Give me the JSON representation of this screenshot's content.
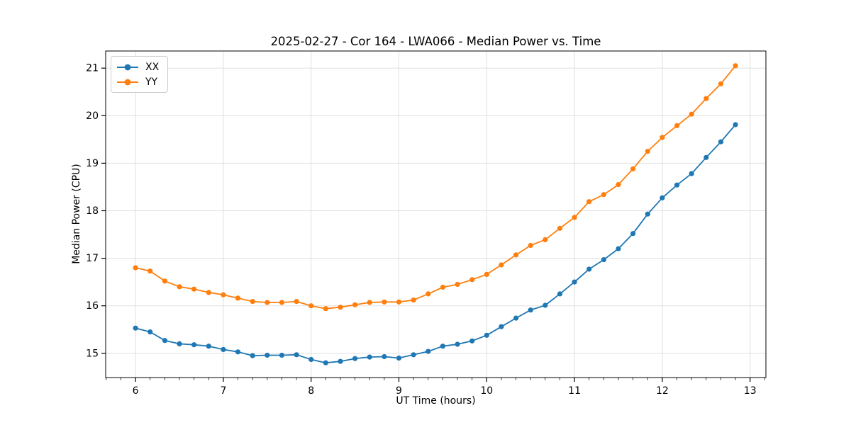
{
  "chart_data": {
    "type": "line",
    "title": "2025-02-27 - Cor 164 - LWA066 - Median Power vs. Time",
    "xlabel": "UT Time (hours)",
    "ylabel": "Median Power (CPU)",
    "xlim": [
      5.66,
      13.18
    ],
    "ylim": [
      14.49,
      21.36
    ],
    "x_ticks": [
      6,
      7,
      8,
      9,
      10,
      11,
      12,
      13
    ],
    "y_ticks": [
      15,
      16,
      17,
      18,
      19,
      20,
      21
    ],
    "x_minor_tick_interval": 0.1666667,
    "grid": true,
    "grid_color": "#e0e0e0",
    "axis_color": "#000000",
    "background": "#ffffff",
    "legend_position": "upper left",
    "x": [
      6.0,
      6.1667,
      6.3333,
      6.5,
      6.6667,
      6.8333,
      7.0,
      7.1667,
      7.3333,
      7.5,
      7.6667,
      7.8333,
      8.0,
      8.1667,
      8.3333,
      8.5,
      8.6667,
      8.8333,
      9.0,
      9.1667,
      9.3333,
      9.5,
      9.6667,
      9.8333,
      10.0,
      10.1667,
      10.3333,
      10.5,
      10.6667,
      10.8333,
      11.0,
      11.1667,
      11.3333,
      11.5,
      11.6667,
      11.8333,
      12.0,
      12.1667,
      12.3333,
      12.5,
      12.6667,
      12.8333
    ],
    "series": [
      {
        "name": "XX",
        "color": "#1f77b4",
        "marker": "circle",
        "values": [
          15.53,
          15.45,
          15.27,
          15.2,
          15.18,
          15.15,
          15.08,
          15.03,
          14.95,
          14.96,
          14.96,
          14.97,
          14.87,
          14.8,
          14.83,
          14.89,
          14.92,
          14.93,
          14.9,
          14.97,
          15.04,
          15.15,
          15.19,
          15.26,
          15.38,
          15.56,
          15.74,
          15.91,
          16.01,
          16.25,
          16.5,
          16.77,
          16.97,
          17.2,
          17.52,
          17.93,
          18.27,
          18.54,
          18.78,
          19.12,
          19.45,
          19.81
        ]
      },
      {
        "name": "YY",
        "color": "#ff7f0e",
        "marker": "circle",
        "values": [
          16.8,
          16.73,
          16.52,
          16.4,
          16.35,
          16.28,
          16.23,
          16.16,
          16.09,
          16.07,
          16.07,
          16.09,
          16.0,
          15.94,
          15.97,
          16.02,
          16.07,
          16.08,
          16.08,
          16.12,
          16.25,
          16.39,
          16.45,
          16.55,
          16.66,
          16.86,
          17.07,
          17.27,
          17.39,
          17.63,
          17.86,
          18.19,
          18.34,
          18.55,
          18.88,
          19.25,
          19.54,
          19.79,
          20.03,
          20.36,
          20.67,
          21.05
        ]
      }
    ]
  }
}
